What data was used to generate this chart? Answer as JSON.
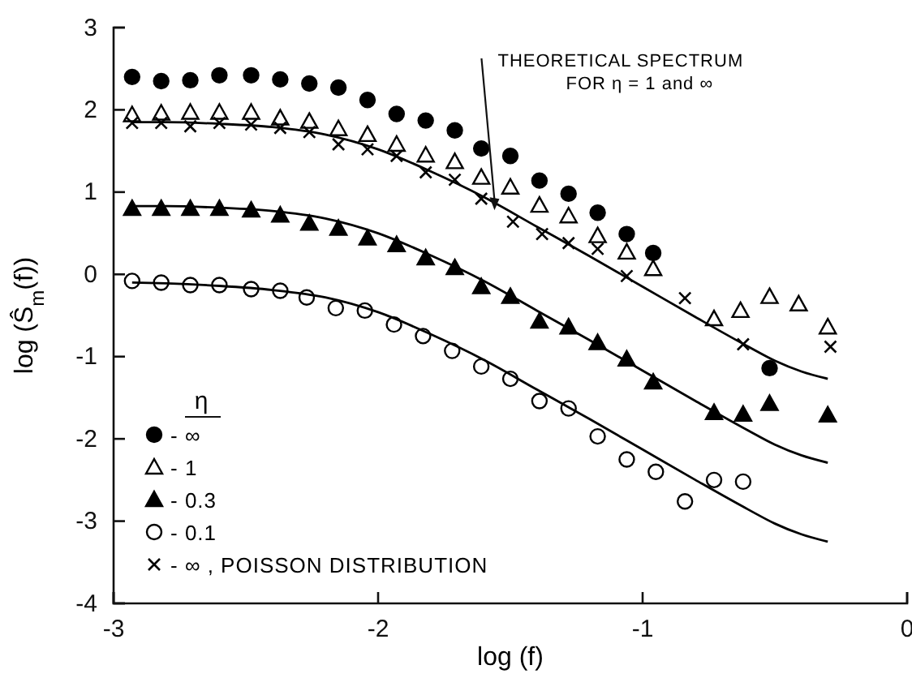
{
  "chart_data": {
    "type": "scatter",
    "xlabel": "log (f)",
    "ylabel": "log (Ŝ$_{m}$(f))",
    "legend_title": "η",
    "legend": "bottom left",
    "xlim": [
      -3,
      0
    ],
    "ylim": [
      -4,
      3
    ],
    "xticks": [
      -3,
      -2,
      -1,
      0
    ],
    "yticks": [
      3,
      2,
      1,
      0,
      -1,
      -2,
      -3,
      -4
    ],
    "grid": false,
    "annotations": [
      {
        "text": "THEORETICAL SPECTRUM\nFOR η = 1 and ∞",
        "x": -1.56,
        "y": 0.78
      }
    ],
    "series": [
      {
        "name": "- ∞",
        "marker": "circle",
        "color": "#000000",
        "x": [
          -2.93,
          -2.82,
          -2.71,
          -2.6,
          -2.48,
          -2.37,
          -2.26,
          -2.15,
          -2.04,
          -1.93,
          -1.82,
          -1.71,
          -1.61,
          -1.5,
          -1.39,
          -1.28,
          -1.17,
          -1.06,
          -0.96,
          -0.52
        ],
        "values": [
          2.4,
          2.35,
          2.36,
          2.42,
          2.42,
          2.37,
          2.32,
          2.27,
          2.12,
          1.95,
          1.87,
          1.75,
          1.53,
          1.44,
          1.14,
          0.98,
          0.75,
          0.49,
          0.26,
          -1.14
        ]
      },
      {
        "name": "- 1",
        "marker": "triangle-open",
        "color": "#000000",
        "x": [
          -2.93,
          -2.82,
          -2.71,
          -2.6,
          -2.48,
          -2.37,
          -2.26,
          -2.15,
          -2.04,
          -1.93,
          -1.82,
          -1.71,
          -1.61,
          -1.5,
          -1.39,
          -1.28,
          -1.17,
          -1.06,
          -0.96,
          -0.73,
          -0.63,
          -0.52,
          -0.41,
          -0.3
        ],
        "values": [
          1.94,
          1.96,
          1.97,
          1.97,
          1.97,
          1.9,
          1.86,
          1.77,
          1.7,
          1.58,
          1.45,
          1.37,
          1.18,
          1.06,
          0.84,
          0.71,
          0.47,
          0.27,
          0.07,
          -0.54,
          -0.44,
          -0.27,
          -0.36,
          -0.64
        ]
      },
      {
        "name": "- 0.3",
        "marker": "triangle",
        "color": "#000000",
        "x": [
          -2.93,
          -2.82,
          -2.71,
          -2.6,
          -2.48,
          -2.37,
          -2.26,
          -2.15,
          -2.04,
          -1.93,
          -1.82,
          -1.71,
          -1.61,
          -1.5,
          -1.39,
          -1.28,
          -1.17,
          -1.06,
          -0.96,
          -0.73,
          -0.62,
          -0.52,
          -0.3
        ],
        "values": [
          0.8,
          0.8,
          0.8,
          0.8,
          0.78,
          0.72,
          0.62,
          0.56,
          0.44,
          0.36,
          0.2,
          0.08,
          -0.15,
          -0.27,
          -0.57,
          -0.64,
          -0.83,
          -1.03,
          -1.31,
          -1.68,
          -1.7,
          -1.57,
          -1.71
        ]
      },
      {
        "name": "- 0.1",
        "marker": "circle-open",
        "color": "#000000",
        "x": [
          -2.93,
          -2.82,
          -2.71,
          -2.6,
          -2.48,
          -2.37,
          -2.27,
          -2.16,
          -2.05,
          -1.94,
          -1.83,
          -1.72,
          -1.61,
          -1.5,
          -1.39,
          -1.28,
          -1.17,
          -1.06,
          -0.95,
          -0.84,
          -0.73,
          -0.62
        ],
        "values": [
          -0.08,
          -0.1,
          -0.13,
          -0.13,
          -0.18,
          -0.2,
          -0.28,
          -0.41,
          -0.44,
          -0.61,
          -0.75,
          -0.93,
          -1.12,
          -1.27,
          -1.54,
          -1.63,
          -1.97,
          -2.25,
          -2.4,
          -2.76,
          -2.5,
          -2.52
        ]
      },
      {
        "name": "- ∞ , POISSON DISTRIBUTION",
        "marker": "cross",
        "color": "#000000",
        "x": [
          -2.93,
          -2.82,
          -2.71,
          -2.6,
          -2.48,
          -2.37,
          -2.26,
          -2.15,
          -2.04,
          -1.93,
          -1.82,
          -1.71,
          -1.61,
          -1.49,
          -1.38,
          -1.28,
          -1.17,
          -1.06,
          -0.84,
          -0.62,
          -0.29
        ],
        "values": [
          1.84,
          1.84,
          1.8,
          1.84,
          1.82,
          1.78,
          1.73,
          1.58,
          1.52,
          1.44,
          1.24,
          1.15,
          0.92,
          0.64,
          0.49,
          0.38,
          0.31,
          -0.02,
          -0.29,
          -0.85,
          -0.88
        ]
      },
      {
        "type": "line",
        "marker": "none",
        "color": "#000000",
        "x": [
          -2.93,
          -2.8,
          -2.6,
          -2.4,
          -2.2,
          -2.0,
          -1.8,
          -1.6,
          -1.4,
          -1.2,
          -1.0,
          -0.8,
          -0.6,
          -0.5,
          -0.4,
          -0.3
        ],
        "values": [
          1.85,
          1.85,
          1.83,
          1.79,
          1.7,
          1.52,
          1.25,
          0.94,
          0.58,
          0.22,
          -0.15,
          -0.52,
          -0.88,
          -1.05,
          -1.18,
          -1.27
        ]
      },
      {
        "type": "line",
        "marker": "none",
        "color": "#000000",
        "x": [
          -2.93,
          -2.8,
          -2.6,
          -2.4,
          -2.2,
          -2.0,
          -1.8,
          -1.6,
          -1.4,
          -1.2,
          -1.0,
          -0.8,
          -0.6,
          -0.5,
          -0.4,
          -0.3
        ],
        "values": [
          0.83,
          0.83,
          0.81,
          0.77,
          0.68,
          0.5,
          0.23,
          -0.08,
          -0.44,
          -0.8,
          -1.17,
          -1.54,
          -1.9,
          -2.07,
          -2.2,
          -2.29
        ]
      },
      {
        "type": "line",
        "marker": "none",
        "color": "#000000",
        "x": [
          -2.93,
          -2.8,
          -2.6,
          -2.4,
          -2.2,
          -2.0,
          -1.8,
          -1.6,
          -1.4,
          -1.2,
          -1.0,
          -0.8,
          -0.6,
          -0.5,
          -0.4,
          -0.3
        ],
        "values": [
          -0.1,
          -0.11,
          -0.14,
          -0.19,
          -0.28,
          -0.46,
          -0.73,
          -1.04,
          -1.4,
          -1.76,
          -2.13,
          -2.5,
          -2.86,
          -3.03,
          -3.16,
          -3.25
        ]
      }
    ]
  }
}
